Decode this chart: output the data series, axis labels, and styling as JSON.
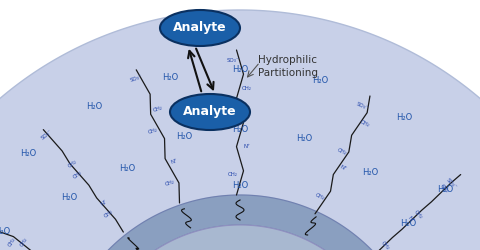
{
  "bg_color": "#ffffff",
  "water_layer_color": "#c8cfe8",
  "water_layer_edge": "#b0bcd8",
  "silica_color": "#8fa0c8",
  "silica_core_color": "#a0b2d0",
  "chain_color": "#2244aa",
  "chain_line_color": "#1a1a1a",
  "h2o_color": "#2255aa",
  "text_color": "#333333",
  "analyte_fill": "#1a5fa8",
  "analyte_edge": "#0a3060",
  "analyte_text": "#ffffff",
  "arrow_color": "#111111",
  "label_hp": "Hydrophilic\nPartitioning",
  "analyte1_text": "Analyte",
  "analyte2_text": "Analyte"
}
